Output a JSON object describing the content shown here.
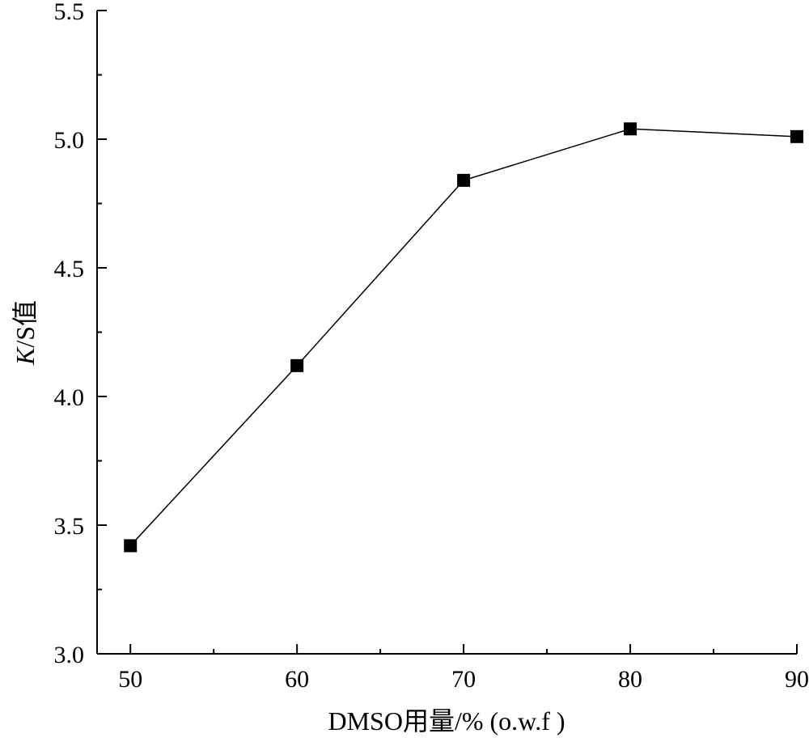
{
  "chart_data": {
    "type": "line",
    "xlabel": "DMSO用量/% (o.w.f )",
    "ylabel": "K/S值",
    "ylabel_parts": {
      "italic": "K",
      "rest": "/S值"
    },
    "xlim": [
      48,
      90
    ],
    "ylim": [
      3.0,
      5.5
    ],
    "x_ticks": [
      50,
      60,
      70,
      80,
      90
    ],
    "x_tick_labels": [
      "50",
      "60",
      "70",
      "80",
      "90"
    ],
    "x_minor_ticks": [
      55,
      65,
      75,
      85
    ],
    "y_ticks": [
      3.0,
      3.5,
      4.0,
      4.5,
      5.0,
      5.5
    ],
    "y_tick_labels": [
      "3.0",
      "3.5",
      "4.0",
      "4.5",
      "5.0",
      "5.5"
    ],
    "y_minor_ticks": [
      3.25,
      3.75,
      4.25,
      4.75,
      5.25
    ],
    "grid": false,
    "marker": "square",
    "color": "#000000",
    "series": [
      {
        "x": [
          50,
          60,
          70,
          80,
          90
        ],
        "y": [
          3.42,
          4.12,
          4.84,
          5.04,
          5.01
        ]
      }
    ]
  }
}
